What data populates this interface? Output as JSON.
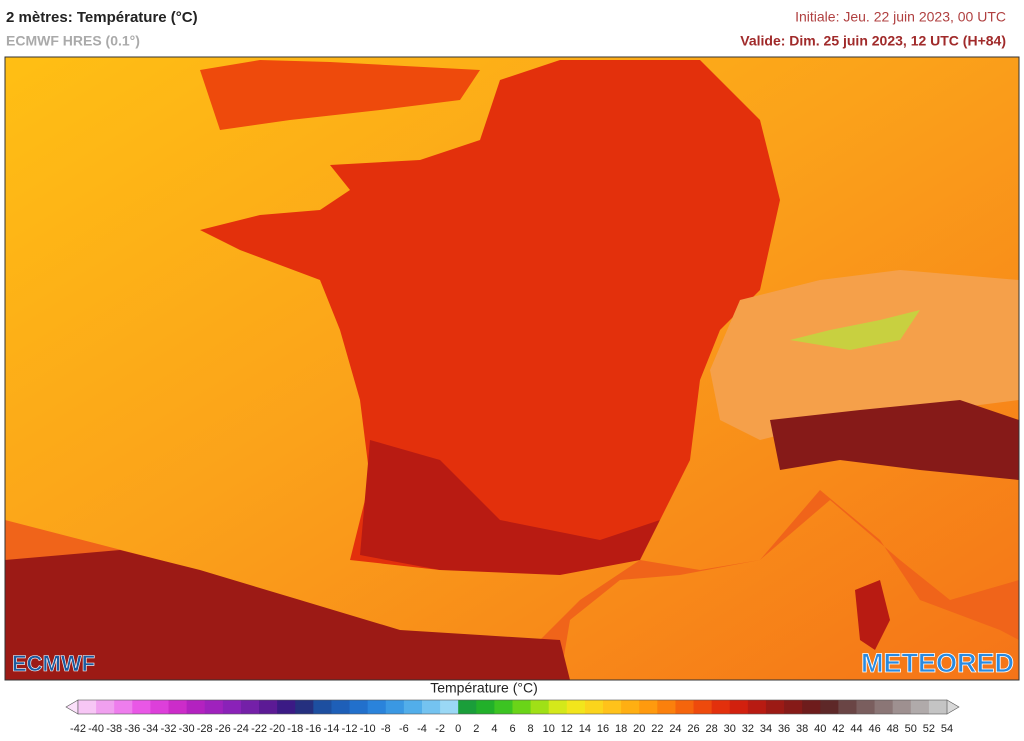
{
  "header": {
    "title": "2 mètres: Température (°C)",
    "subtitle": "ECMWF HRES (0.1°)",
    "initial": "Initiale: Jeu. 22 juin 2023, 00 UTC",
    "valid": "Valide: Dim. 25 juin 2023, 12 UTC (H+84)"
  },
  "logos": {
    "left": "ECMWF",
    "right": "METEORED"
  },
  "legend": {
    "title": "Température (°C)",
    "ticks": [
      -42,
      -40,
      -38,
      -36,
      -34,
      -32,
      -30,
      -28,
      -26,
      -24,
      -22,
      -20,
      -18,
      -16,
      -14,
      -12,
      -10,
      -8,
      -6,
      -4,
      -2,
      0,
      2,
      4,
      6,
      8,
      10,
      12,
      14,
      16,
      18,
      20,
      22,
      24,
      26,
      28,
      30,
      32,
      34,
      36,
      38,
      40,
      42,
      44,
      46,
      48,
      50,
      52,
      54
    ],
    "under_color": "#fbe0fa",
    "over_color": "#d8d8d8",
    "colors": [
      "#f7c6f5",
      "#f0a0ef",
      "#ee7ded",
      "#e957e6",
      "#dd3fda",
      "#cc2cc9",
      "#b322c0",
      "#9f22bd",
      "#8a22b8",
      "#7420a8",
      "#5c1a95",
      "#3b1a85",
      "#25307f",
      "#1d4fa0",
      "#1e5fb8",
      "#2270cc",
      "#2a83db",
      "#3a98e3",
      "#52aeea",
      "#74c3f0",
      "#9ad8f5",
      "#1a9e3a",
      "#22b02a",
      "#3cc422",
      "#6ad418",
      "#a0e016",
      "#d4e81a",
      "#f2e51c",
      "#fbd41c",
      "#ffc21a",
      "#ffaf12",
      "#ff9a0e",
      "#fb800c",
      "#f5650c",
      "#ee4a0c",
      "#e3300c",
      "#d2200e",
      "#b81b12",
      "#9c1a15",
      "#861a18",
      "#6e1c1c",
      "#5e2828",
      "#6a4545",
      "#7a5e5e",
      "#8b7676",
      "#9e9090",
      "#b0aaaa",
      "#c4c4c4"
    ]
  }
}
